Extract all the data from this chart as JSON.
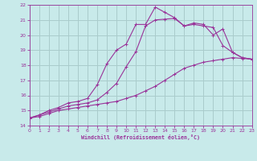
{
  "background_color": "#c8eaea",
  "grid_color": "#aacccc",
  "line_color": "#993399",
  "x_min": 0,
  "x_max": 23,
  "y_min": 14,
  "y_max": 22,
  "xlabel": "Windchill (Refroidissement éolien,°C)",
  "x_ticks": [
    0,
    1,
    2,
    3,
    4,
    5,
    6,
    7,
    8,
    9,
    10,
    11,
    12,
    13,
    14,
    15,
    16,
    17,
    18,
    19,
    20,
    21,
    22,
    23
  ],
  "y_ticks": [
    14,
    15,
    16,
    17,
    18,
    19,
    20,
    21,
    22
  ],
  "curve1_x": [
    0,
    1,
    2,
    3,
    4,
    5,
    6,
    7,
    8,
    9,
    10,
    11,
    12,
    13,
    14,
    15,
    16,
    17,
    18,
    19,
    20,
    21,
    22,
    23
  ],
  "curve1_y": [
    14.5,
    14.6,
    14.8,
    15.0,
    15.1,
    15.2,
    15.3,
    15.4,
    15.5,
    15.6,
    15.8,
    16.0,
    16.3,
    16.6,
    17.0,
    17.4,
    17.8,
    18.0,
    18.2,
    18.3,
    18.4,
    18.5,
    18.45,
    18.4
  ],
  "curve2_x": [
    0,
    1,
    2,
    3,
    4,
    5,
    6,
    7,
    8,
    9,
    10,
    11,
    12,
    13,
    14,
    15,
    16,
    17,
    18,
    19,
    20,
    21,
    22,
    23
  ],
  "curve2_y": [
    14.5,
    14.7,
    14.9,
    15.1,
    15.3,
    15.4,
    15.5,
    15.7,
    16.2,
    16.8,
    17.9,
    18.9,
    20.6,
    21.0,
    21.05,
    21.1,
    20.6,
    20.7,
    20.6,
    20.5,
    19.3,
    18.85,
    18.5,
    18.4
  ],
  "curve3_x": [
    0,
    1,
    2,
    3,
    4,
    5,
    6,
    7,
    8,
    9,
    10,
    11,
    12,
    13,
    14,
    15,
    16,
    17,
    18,
    19,
    20,
    21,
    22,
    23
  ],
  "curve3_y": [
    14.5,
    14.7,
    15.0,
    15.2,
    15.5,
    15.6,
    15.8,
    16.7,
    18.1,
    19.0,
    19.4,
    20.7,
    20.7,
    21.85,
    21.5,
    21.15,
    20.6,
    20.8,
    20.7,
    20.0,
    20.4,
    18.85,
    18.5,
    18.4
  ]
}
